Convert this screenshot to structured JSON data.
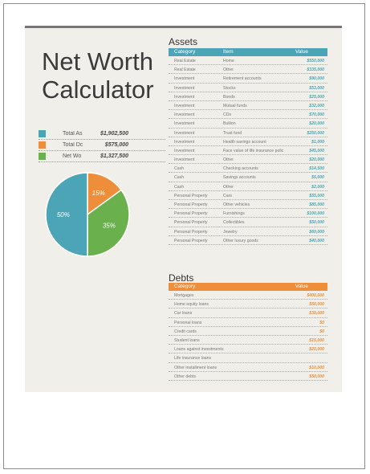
{
  "title": {
    "line1": "Net Worth",
    "line2": "Calculator"
  },
  "summary": [
    {
      "label": "Total As",
      "value": "$1,902,500",
      "color": "#4ba5b7"
    },
    {
      "label": "Total Dc",
      "value": "$575,000",
      "color": "#ef8e3a"
    },
    {
      "label": "Net Wo",
      "value": "$1,327,500",
      "color": "#6ab04c"
    }
  ],
  "pie": {
    "slices": [
      {
        "label": "50%",
        "value": 50,
        "color": "#4ba5b7"
      },
      {
        "label": "15%",
        "value": 15,
        "color": "#ef8e3a"
      },
      {
        "label": "35%",
        "value": 35,
        "color": "#6ab04c"
      }
    ]
  },
  "assets": {
    "title": "Assets",
    "headers": {
      "category": "Category",
      "item": "Item",
      "value": "Value"
    },
    "rows": [
      {
        "category": "Real Estate",
        "item": "Home",
        "value": "$550,000"
      },
      {
        "category": "Real Estate",
        "item": "Other",
        "value": "$335,000"
      },
      {
        "category": "Investment",
        "item": "Retirement accounts",
        "value": "$90,000"
      },
      {
        "category": "Investment",
        "item": "Stocks",
        "value": "$53,000"
      },
      {
        "category": "Investment",
        "item": "Bonds",
        "value": "$25,000"
      },
      {
        "category": "Investment",
        "item": "Mutual funds",
        "value": "$32,000"
      },
      {
        "category": "Investment",
        "item": "CDs",
        "value": "$70,000"
      },
      {
        "category": "Investment",
        "item": "Bullion",
        "value": "$20,000"
      },
      {
        "category": "Investment",
        "item": "Trust fund",
        "value": "$250,000"
      },
      {
        "category": "Investment",
        "item": "Health savings account",
        "value": "$1,000"
      },
      {
        "category": "Investment",
        "item": "Face value of life insurance polic",
        "value": "$45,000"
      },
      {
        "category": "Investment",
        "item": "Other",
        "value": "$20,000"
      },
      {
        "category": "Cash",
        "item": "Checking accounts",
        "value": "$14,500"
      },
      {
        "category": "Cash",
        "item": "Savings accounts",
        "value": "$5,000"
      },
      {
        "category": "Cash",
        "item": "Other",
        "value": "$2,000"
      },
      {
        "category": "Personal Property",
        "item": "Cars",
        "value": "$55,000"
      },
      {
        "category": "Personal Property",
        "item": "Other vehicles",
        "value": "$85,000"
      },
      {
        "category": "Personal Property",
        "item": "Furnishings",
        "value": "$100,000"
      },
      {
        "category": "Personal Property",
        "item": "Collectibles",
        "value": "$50,000"
      },
      {
        "category": "Personal Property",
        "item": "Jewelry",
        "value": "$60,000"
      },
      {
        "category": "Personal Property",
        "item": "Other luxury goods",
        "value": "$40,000"
      }
    ]
  },
  "debts": {
    "title": "Debts",
    "headers": {
      "category": "Category",
      "value": "Value"
    },
    "rows": [
      {
        "category": "Mortgages",
        "value": "$400,000"
      },
      {
        "category": "Home equity loans",
        "value": "$50,000"
      },
      {
        "category": "Car loans",
        "value": "$30,000"
      },
      {
        "category": "Personal loans",
        "value": "$0"
      },
      {
        "category": "Credit cards",
        "value": "$0"
      },
      {
        "category": "Student loans",
        "value": "$15,000"
      },
      {
        "category": "Loans against investments",
        "value": "$20,000"
      },
      {
        "category": "Life insurance loans",
        "value": ""
      },
      {
        "category": "Other installment loans",
        "value": "$10,000"
      },
      {
        "category": "Other debts",
        "value": "$50,000"
      }
    ]
  }
}
